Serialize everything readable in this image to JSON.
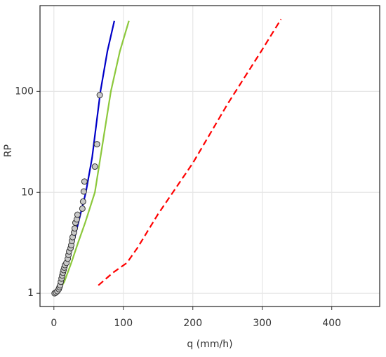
{
  "chart_data": {
    "type": "line",
    "xlabel": "q (mm/h)",
    "ylabel": "RP",
    "xlim": [
      -20,
      469
    ],
    "xticks": [
      0,
      100,
      200,
      300,
      400
    ],
    "ylim": [
      0.74,
      708
    ],
    "yticks": [
      1,
      10,
      100
    ],
    "ylog": true,
    "grid": true,
    "series": [
      {
        "mode": "line",
        "color": "#0000c8",
        "dash": false,
        "x": [
          0,
          10,
          20,
          30,
          40,
          46,
          55,
          67,
          77,
          87
        ],
        "values": [
          1,
          1.3,
          2,
          3.6,
          6.8,
          10,
          22,
          100,
          250,
          500
        ]
      },
      {
        "mode": "line",
        "color": "#8cc83c",
        "dash": false,
        "x": [
          5,
          15,
          25,
          35,
          45,
          59,
          70,
          82,
          95,
          108
        ],
        "values": [
          1,
          1.3,
          2,
          3.2,
          5,
          10,
          30,
          100,
          250,
          500
        ]
      },
      {
        "mode": "line",
        "color": "#ff0000",
        "dash": true,
        "x": [
          64,
          85,
          105,
          120,
          150,
          200,
          250,
          300,
          327
        ],
        "values": [
          1.2,
          1.6,
          2,
          2.8,
          6.1,
          19.5,
          75,
          260,
          520
        ]
      },
      {
        "mode": "scatter",
        "color": "#c8c8c8",
        "x": [
          1,
          3,
          5,
          7,
          8,
          9,
          10,
          11,
          12,
          13,
          14,
          15,
          16,
          18,
          20,
          21,
          22,
          24,
          25,
          26,
          27,
          29,
          30,
          31,
          33,
          34,
          41,
          42,
          43,
          44,
          59,
          62,
          66
        ],
        "values": [
          1,
          1.02,
          1.05,
          1.1,
          1.15,
          1.2,
          1.3,
          1.4,
          1.5,
          1.6,
          1.7,
          1.8,
          1.9,
          2,
          2.2,
          2.4,
          2.6,
          2.8,
          3,
          3.3,
          3.6,
          4,
          4.4,
          5,
          5.4,
          6,
          6.9,
          8.1,
          10.2,
          12.8,
          18,
          30,
          92
        ]
      }
    ]
  }
}
